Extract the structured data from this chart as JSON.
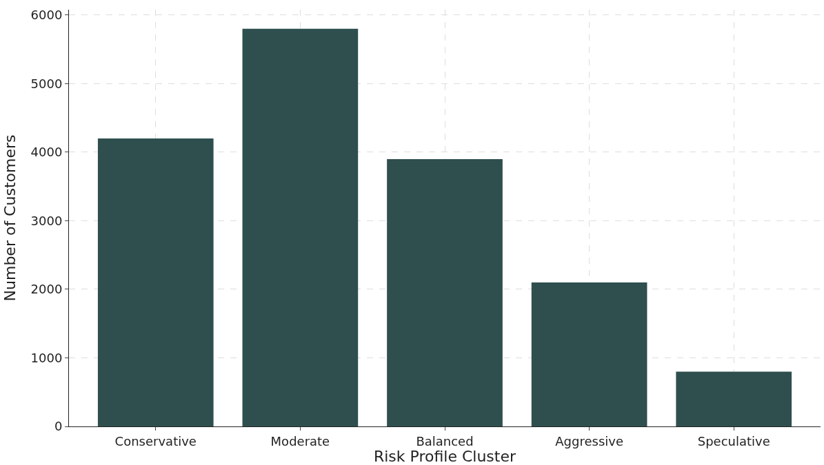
{
  "chart_data": {
    "type": "bar",
    "xlabel": "Risk Profile Cluster",
    "ylabel": "Number of Customers",
    "categories": [
      "Conservative",
      "Moderate",
      "Balanced",
      "Aggressive",
      "Speculative"
    ],
    "values": [
      4200,
      5800,
      3900,
      2100,
      800
    ],
    "color": "#2f4f4f",
    "ylim": [
      0,
      6080
    ],
    "yticks": [
      0,
      1000,
      2000,
      3000,
      4000,
      5000,
      6000
    ],
    "grid": true
  }
}
